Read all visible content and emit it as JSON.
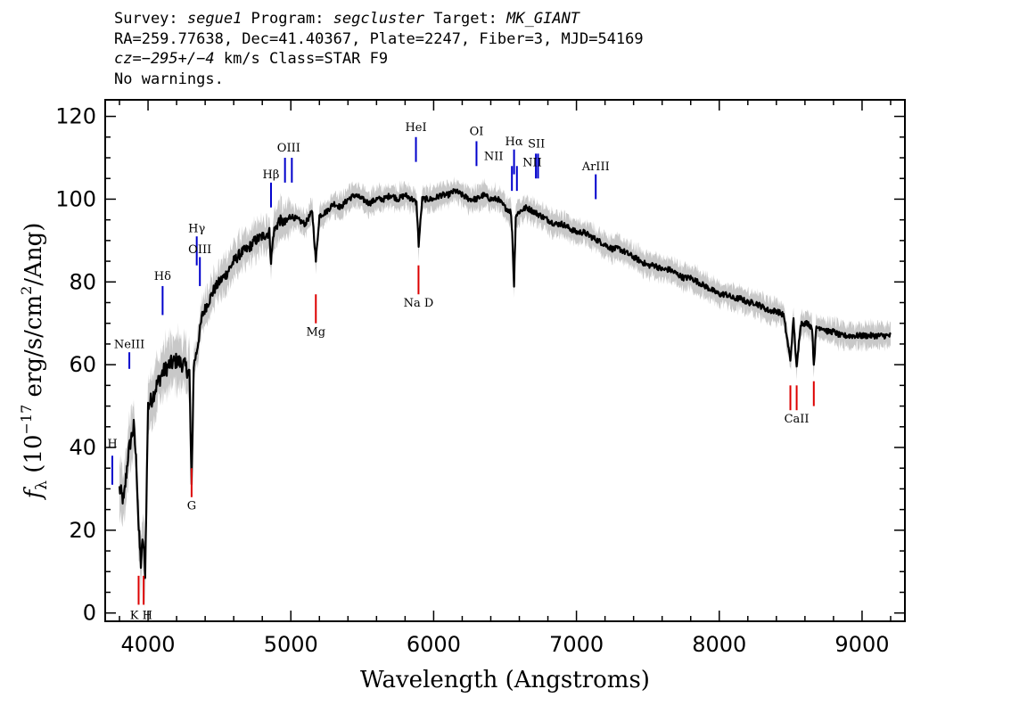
{
  "header": {
    "line1": {
      "survey_label": "Survey: ",
      "survey": "segue1",
      "program_label": " Program: ",
      "program": "segcluster",
      "target_label": " Target: ",
      "target": "MK_GIANT"
    },
    "line2": "RA=259.77638, Dec=41.40367, Plate=2247, Fiber=3, MJD=54169",
    "line3": {
      "cz": "cz=−295+/−4",
      "rest": " km/s Class=STAR F9"
    },
    "line4": "No warnings."
  },
  "colors": {
    "spectrum": "#000000",
    "error_band": "#c8c8c8",
    "emission_lines": "#0000cc",
    "absorption_lines": "#dd0000"
  },
  "chart_data": {
    "type": "line",
    "xlabel": "Wavelength (Angstroms)",
    "ylabel": "fλ (10⁻¹⁷ erg/s/cm²/Ang)",
    "ylabel_parts": {
      "f": "f",
      "sub": "λ",
      "open": " (10",
      "exp1": "−17",
      "mid": " erg/s/cm",
      "exp2": "2",
      "close": "/Ang)"
    },
    "xlim": [
      3700,
      9300
    ],
    "ylim": [
      -2,
      124
    ],
    "xticks": [
      4000,
      5000,
      6000,
      7000,
      8000,
      9000
    ],
    "yticks": [
      0,
      20,
      40,
      60,
      80,
      100,
      120
    ],
    "grid": false,
    "series": [
      {
        "x": [
          3800,
          3830,
          3860,
          3880,
          3900,
          3920,
          3935,
          3950,
          3965,
          3980,
          4000,
          4030,
          4060,
          4100,
          4150,
          4200,
          4250,
          4290,
          4305,
          4320,
          4340,
          4380,
          4420,
          4460,
          4500,
          4550,
          4600,
          4650,
          4700,
          4750,
          4800,
          4850,
          4861,
          4880,
          4920,
          4960,
          5000,
          5050,
          5100,
          5150,
          5175,
          5200,
          5250,
          5300,
          5350,
          5400,
          5450,
          5500,
          5550,
          5600,
          5650,
          5700,
          5750,
          5800,
          5850,
          5880,
          5895,
          5920,
          5950,
          6000,
          6050,
          6100,
          6150,
          6200,
          6250,
          6300,
          6350,
          6400,
          6450,
          6500,
          6540,
          6550,
          6563,
          6575,
          6600,
          6650,
          6700,
          6750,
          6800,
          6850,
          6900,
          6950,
          7000,
          7050,
          7100,
          7150,
          7200,
          7250,
          7300,
          7350,
          7400,
          7450,
          7500,
          7550,
          7600,
          7650,
          7700,
          7750,
          7800,
          7850,
          7900,
          7950,
          8000,
          8050,
          8100,
          8150,
          8200,
          8250,
          8300,
          8350,
          8400,
          8450,
          8498,
          8520,
          8542,
          8570,
          8620,
          8650,
          8662,
          8680,
          8720,
          8760,
          8800,
          8850,
          8900,
          8950,
          9000,
          9050,
          9100,
          9150,
          9200
        ],
        "y": [
          30,
          27,
          38,
          42,
          45,
          35,
          20,
          12,
          18,
          10,
          50,
          52,
          55,
          58,
          60,
          61,
          60,
          58,
          30,
          60,
          63,
          72,
          75,
          78,
          80,
          82,
          85,
          87,
          88,
          90,
          91,
          92,
          85,
          92,
          95,
          94,
          96,
          95,
          94,
          97,
          85,
          96,
          97,
          99,
          98,
          100,
          101,
          100,
          99,
          100,
          100,
          101,
          100,
          101,
          100,
          99,
          89,
          100,
          100,
          100,
          101,
          101,
          102,
          101,
          100,
          100,
          101,
          100,
          100,
          98,
          97,
          92,
          79,
          96,
          97,
          98,
          97,
          96,
          95,
          94,
          94,
          93,
          92,
          92,
          91,
          90,
          89,
          88,
          88,
          87,
          86,
          85,
          84,
          84,
          83,
          83,
          82,
          81,
          81,
          80,
          79,
          78,
          77,
          77,
          76,
          76,
          75,
          75,
          74,
          73,
          73,
          72,
          61,
          71,
          59,
          70,
          70,
          69,
          60,
          69,
          69,
          68,
          68,
          67,
          67,
          67,
          67,
          67,
          67,
          67,
          67
        ]
      }
    ],
    "line_markers": [
      {
        "label": "H",
        "x": 3750,
        "y1": 31,
        "y2": 38,
        "color": "blue",
        "label_y": 40
      },
      {
        "label": "NeIII",
        "x": 3869,
        "y1": 59,
        "y2": 63,
        "color": "blue",
        "label_y": 64
      },
      {
        "label": "Hδ",
        "x": 4102,
        "y1": 72,
        "y2": 79,
        "color": "blue",
        "label_y": 80.5
      },
      {
        "label": "Hγ",
        "x": 4341,
        "y1": 84,
        "y2": 91,
        "color": "blue",
        "label_y": 92
      },
      {
        "label": "OIII",
        "x": 4363,
        "y1": 79,
        "y2": 86,
        "color": "blue",
        "label_y": 87
      },
      {
        "label": "Hβ",
        "x": 4861,
        "y1": 98,
        "y2": 104,
        "color": "blue",
        "label_y": 105
      },
      {
        "label": "OIII",
        "x": 4959,
        "y1": 104,
        "y2": 110,
        "color": "blue",
        "label_y": 111.5,
        "label_x": 4985
      },
      {
        "label": "",
        "x": 5007,
        "y1": 104,
        "y2": 110,
        "color": "blue"
      },
      {
        "label": "HeI",
        "x": 5876,
        "y1": 109,
        "y2": 115,
        "color": "blue",
        "label_y": 116.5
      },
      {
        "label": "OI",
        "x": 6300,
        "y1": 108,
        "y2": 114,
        "color": "blue",
        "label_y": 115.5
      },
      {
        "label": "NII",
        "x": 6548,
        "y1": 102,
        "y2": 108,
        "color": "blue",
        "label_y": 109.5,
        "label_x": 6420
      },
      {
        "label": "Hα",
        "x": 6563,
        "y1": 106,
        "y2": 112,
        "color": "blue",
        "label_y": 113
      },
      {
        "label": "",
        "x": 6583,
        "y1": 102,
        "y2": 108,
        "color": "blue"
      },
      {
        "label": "SII",
        "x": 6716,
        "y1": 105,
        "y2": 111,
        "color": "blue",
        "label_y": 112.5,
        "label_x": 6720
      },
      {
        "label": "NII",
        "x": 6731,
        "y1": 105,
        "y2": 111,
        "color": "blue",
        "label_y": 108,
        "label_x": 6690
      },
      {
        "label": "ArIII",
        "x": 7135,
        "y1": 100,
        "y2": 106,
        "color": "blue",
        "label_y": 107
      },
      {
        "label": "",
        "x": 3934,
        "y1": 2,
        "y2": 9,
        "color": "red"
      },
      {
        "label": "K H",
        "x": 3969,
        "y1": 2,
        "y2": 9,
        "color": "red",
        "label_y": -1.5,
        "label_x": 3952,
        "label_below": true
      },
      {
        "label": "G",
        "x": 4305,
        "y1": 28,
        "y2": 35,
        "color": "red",
        "label_y": 25,
        "label_below": true
      },
      {
        "label": "Mg",
        "x": 5175,
        "y1": 70,
        "y2": 77,
        "color": "red",
        "label_y": 67,
        "label_below": true
      },
      {
        "label": "Na D",
        "x": 5894,
        "y1": 77,
        "y2": 84,
        "color": "red",
        "label_y": 74,
        "label_below": true
      },
      {
        "label": "",
        "x": 8498,
        "y1": 49,
        "y2": 55,
        "color": "red"
      },
      {
        "label": "CaII",
        "x": 8542,
        "y1": 49,
        "y2": 55,
        "color": "red",
        "label_y": 46,
        "label_below": true
      },
      {
        "label": "",
        "x": 8662,
        "y1": 50,
        "y2": 56,
        "color": "red"
      }
    ]
  }
}
